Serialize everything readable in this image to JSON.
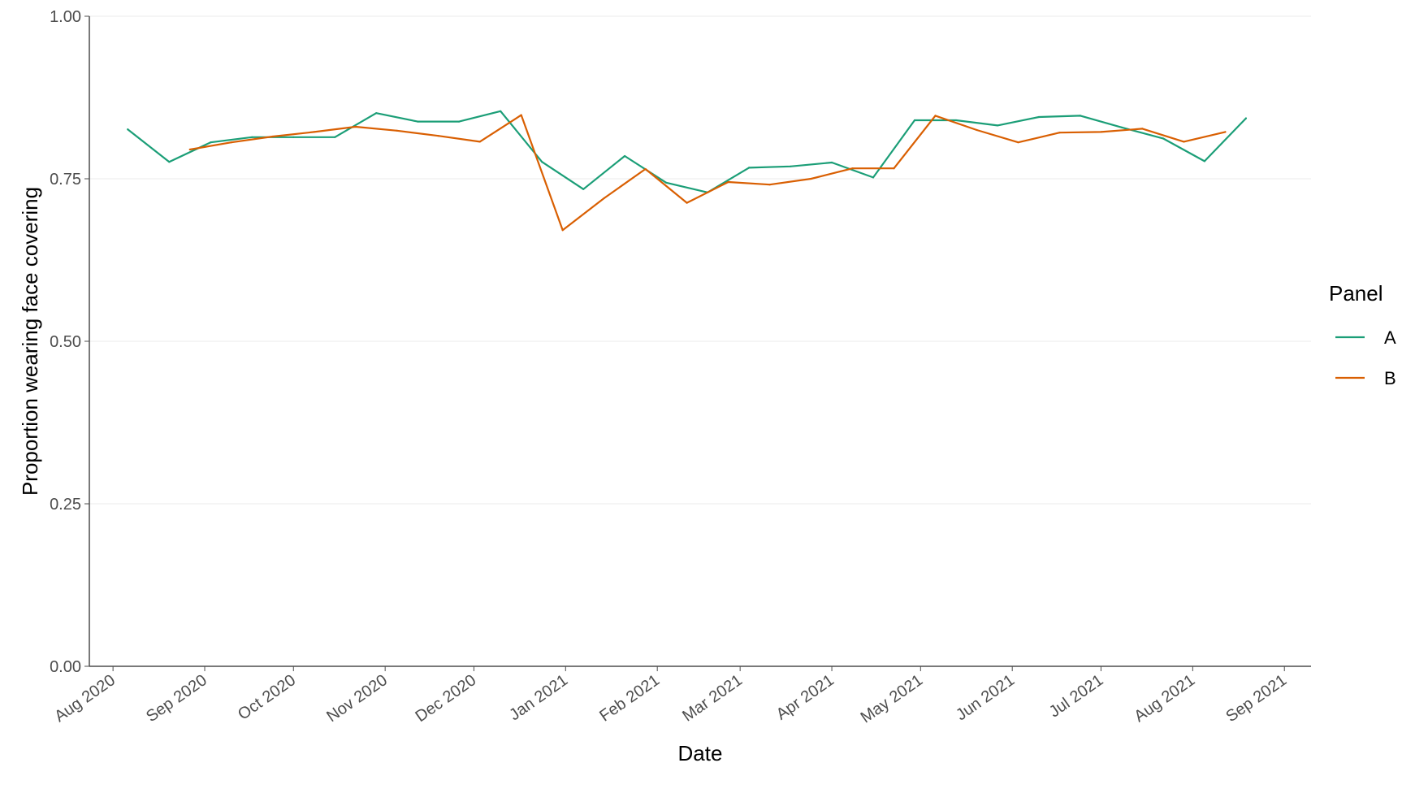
{
  "chart_data": {
    "type": "line",
    "title": "",
    "xlabel": "Date",
    "ylabel": "Proportion wearing face covering",
    "x_ticks": [
      "Aug 2020",
      "Sep 2020",
      "Oct 2020",
      "Nov 2020",
      "Dec 2020",
      "Jan 2021",
      "Feb 2021",
      "Mar 2021",
      "Apr 2021",
      "May 2021",
      "Jun 2021",
      "Jul 2021",
      "Aug 2021",
      "Sep 2021"
    ],
    "y_ticks": [
      "0.00",
      "0.25",
      "0.50",
      "0.75",
      "1.00"
    ],
    "y_tick_values": [
      0,
      0.25,
      0.5,
      0.75,
      1.0
    ],
    "ylim": [
      0,
      1
    ],
    "xlim": [
      "2020-07-24",
      "2021-09-10"
    ],
    "grid": "horizontal",
    "legend": {
      "title": "Panel",
      "position": "right"
    },
    "series": [
      {
        "name": "A",
        "color": "#1b9e77",
        "points": [
          [
            "2020-08-06",
            0.826
          ],
          [
            "2020-08-20",
            0.776
          ],
          [
            "2020-09-03",
            0.806
          ],
          [
            "2020-09-17",
            0.814
          ],
          [
            "2020-10-01",
            0.814
          ],
          [
            "2020-10-15",
            0.814
          ],
          [
            "2020-10-29",
            0.851
          ],
          [
            "2020-11-12",
            0.838
          ],
          [
            "2020-11-26",
            0.838
          ],
          [
            "2020-12-10",
            0.854
          ],
          [
            "2020-12-24",
            0.776
          ],
          [
            "2021-01-07",
            0.734
          ],
          [
            "2021-01-21",
            0.785
          ],
          [
            "2021-02-04",
            0.744
          ],
          [
            "2021-02-18",
            0.729
          ],
          [
            "2021-03-04",
            0.767
          ],
          [
            "2021-03-18",
            0.769
          ],
          [
            "2021-04-01",
            0.775
          ],
          [
            "2021-04-15",
            0.752
          ],
          [
            "2021-04-29",
            0.84
          ],
          [
            "2021-05-13",
            0.84
          ],
          [
            "2021-05-27",
            0.832
          ],
          [
            "2021-06-10",
            0.845
          ],
          [
            "2021-06-24",
            0.847
          ],
          [
            "2021-07-08",
            0.829
          ],
          [
            "2021-07-22",
            0.812
          ],
          [
            "2021-08-05",
            0.777
          ],
          [
            "2021-08-19",
            0.843
          ]
        ]
      },
      {
        "name": "B",
        "color": "#d95f02",
        "points": [
          [
            "2020-08-27",
            0.795
          ],
          [
            "2020-09-10",
            0.806
          ],
          [
            "2020-09-24",
            0.815
          ],
          [
            "2020-10-08",
            0.822
          ],
          [
            "2020-10-22",
            0.83
          ],
          [
            "2020-11-05",
            0.824
          ],
          [
            "2020-11-19",
            0.816
          ],
          [
            "2020-12-03",
            0.807
          ],
          [
            "2020-12-17",
            0.848
          ],
          [
            "2020-12-31",
            0.671
          ],
          [
            "2021-01-14",
            0.72
          ],
          [
            "2021-01-28",
            0.765
          ],
          [
            "2021-02-11",
            0.713
          ],
          [
            "2021-02-25",
            0.745
          ],
          [
            "2021-03-11",
            0.741
          ],
          [
            "2021-03-25",
            0.75
          ],
          [
            "2021-04-08",
            0.766
          ],
          [
            "2021-04-22",
            0.766
          ],
          [
            "2021-05-06",
            0.847
          ],
          [
            "2021-05-20",
            0.825
          ],
          [
            "2021-06-03",
            0.806
          ],
          [
            "2021-06-17",
            0.821
          ],
          [
            "2021-07-01",
            0.822
          ],
          [
            "2021-07-15",
            0.827
          ],
          [
            "2021-07-29",
            0.807
          ],
          [
            "2021-08-12",
            0.822
          ]
        ]
      }
    ]
  }
}
